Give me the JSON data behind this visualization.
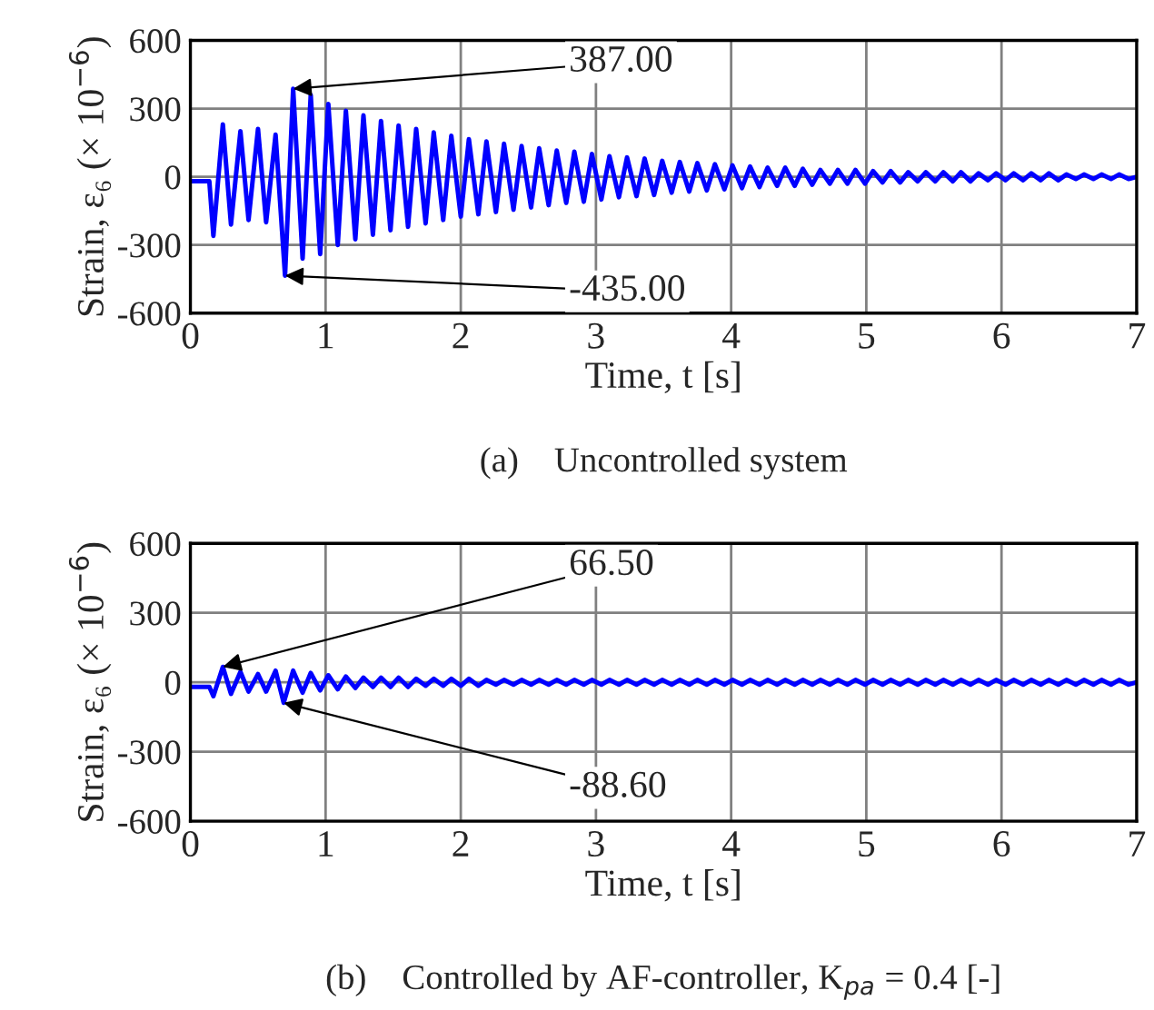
{
  "chart_data": [
    {
      "type": "line",
      "xlabel": "Time, t [s]",
      "ylabel": "Strain, ε₆ (× 10$^{−6}$)",
      "xlim": [
        0,
        7
      ],
      "ylim": [
        -600,
        600
      ],
      "xticks": [
        0,
        1,
        2,
        3,
        4,
        5,
        6,
        7
      ],
      "yticks": [
        -600,
        -300,
        0,
        300,
        600
      ],
      "grid": true,
      "legend": false,
      "x": [
        0,
        0.14,
        0.17,
        0.24,
        0.3,
        0.37,
        0.43,
        0.5,
        0.56,
        0.63,
        0.7,
        0.76,
        0.83,
        0.89,
        0.96,
        1.02,
        1.09,
        1.15,
        1.22,
        1.28,
        1.35,
        1.41,
        1.48,
        1.54,
        1.61,
        1.67,
        1.74,
        1.8,
        1.87,
        1.93,
        2.0,
        2.06,
        2.13,
        2.19,
        2.26,
        2.32,
        2.39,
        2.45,
        2.52,
        2.58,
        2.65,
        2.71,
        2.78,
        2.84,
        2.91,
        2.97,
        3.04,
        3.1,
        3.17,
        3.23,
        3.3,
        3.36,
        3.43,
        3.49,
        3.56,
        3.62,
        3.69,
        3.75,
        3.82,
        3.88,
        3.95,
        4.01,
        4.08,
        4.14,
        4.21,
        4.27,
        4.34,
        4.4,
        4.47,
        4.53,
        4.6,
        4.66,
        4.73,
        4.79,
        4.86,
        4.92,
        4.99,
        5.05,
        5.12,
        5.18,
        5.25,
        5.31,
        5.38,
        5.44,
        5.51,
        5.57,
        5.64,
        5.7,
        5.77,
        5.83,
        5.9,
        5.96,
        6.03,
        6.09,
        6.16,
        6.22,
        6.29,
        6.35,
        6.42,
        6.48,
        6.55,
        6.61,
        6.68,
        6.74,
        6.81,
        6.87,
        6.94,
        7.0
      ],
      "series": [
        {
          "color": "#0000ff",
          "values": [
            -20,
            -20,
            -260,
            230,
            -210,
            200,
            -190,
            210,
            -200,
            185,
            -435,
            387,
            -360,
            360,
            -340,
            320,
            -300,
            290,
            -275,
            270,
            -255,
            245,
            -235,
            225,
            -220,
            210,
            -205,
            195,
            -190,
            180,
            -175,
            165,
            -165,
            155,
            -155,
            145,
            -145,
            135,
            -135,
            125,
            -125,
            115,
            -115,
            110,
            -110,
            100,
            -100,
            90,
            -90,
            85,
            -85,
            80,
            -80,
            70,
            -70,
            65,
            -65,
            60,
            -60,
            55,
            -55,
            50,
            -50,
            45,
            -45,
            40,
            -40,
            40,
            -40,
            35,
            -35,
            30,
            -30,
            30,
            -30,
            30,
            -30,
            25,
            -25,
            25,
            -25,
            20,
            -20,
            20,
            -20,
            20,
            -20,
            20,
            -20,
            15,
            -15,
            15,
            -15,
            15,
            -15,
            15,
            -15,
            15,
            -15,
            10,
            -10,
            10,
            -10,
            10,
            -10,
            10,
            -10,
            0
          ]
        }
      ],
      "annotations": [
        {
          "text": "387.00",
          "x": 0.76,
          "y": 387
        },
        {
          "text": "-435.00",
          "x": 0.7,
          "y": -435
        },
        "(a)    Uncontrolled system"
      ]
    },
    {
      "type": "line",
      "xlabel": "Time, t [s]",
      "ylabel": "Strain, ε₆ (× 10$^{−6}$)",
      "xlim": [
        0,
        7
      ],
      "ylim": [
        -600,
        600
      ],
      "xticks": [
        0,
        1,
        2,
        3,
        4,
        5,
        6,
        7
      ],
      "yticks": [
        -600,
        -300,
        0,
        300,
        600
      ],
      "grid": true,
      "legend": false,
      "x": [
        0,
        0.14,
        0.17,
        0.24,
        0.3,
        0.37,
        0.43,
        0.5,
        0.56,
        0.63,
        0.69,
        0.76,
        0.83,
        0.89,
        0.96,
        1.02,
        1.09,
        1.15,
        1.22,
        1.28,
        1.35,
        1.41,
        1.48,
        1.54,
        1.61,
        1.67,
        1.74,
        1.8,
        1.87,
        1.93,
        2.0,
        2.06,
        2.13,
        2.19,
        2.26,
        2.32,
        2.39,
        2.45,
        2.52,
        2.58,
        2.65,
        2.71,
        2.78,
        2.84,
        2.91,
        2.97,
        3.04,
        3.1,
        3.17,
        3.23,
        3.3,
        3.36,
        3.43,
        3.49,
        3.56,
        3.62,
        3.69,
        3.75,
        3.82,
        3.88,
        3.95,
        4.01,
        4.08,
        4.14,
        4.21,
        4.27,
        4.34,
        4.4,
        4.47,
        4.53,
        4.6,
        4.66,
        4.73,
        4.79,
        4.86,
        4.92,
        4.99,
        5.05,
        5.12,
        5.18,
        5.25,
        5.31,
        5.38,
        5.44,
        5.51,
        5.57,
        5.64,
        5.7,
        5.77,
        5.83,
        5.9,
        5.96,
        6.03,
        6.09,
        6.16,
        6.22,
        6.29,
        6.35,
        6.42,
        6.48,
        6.55,
        6.61,
        6.68,
        6.74,
        6.81,
        6.87,
        6.94,
        7.0
      ],
      "series": [
        {
          "color": "#0000ff",
          "values": [
            -20,
            -20,
            -60,
            66.5,
            -50,
            45,
            -40,
            35,
            -40,
            50,
            -88.6,
            50,
            -45,
            40,
            -35,
            30,
            -30,
            25,
            -25,
            20,
            -20,
            20,
            -20,
            20,
            -20,
            15,
            -15,
            15,
            -15,
            15,
            -15,
            15,
            -15,
            10,
            -10,
            10,
            -10,
            10,
            -10,
            10,
            -10,
            10,
            -10,
            10,
            -10,
            10,
            -10,
            10,
            -10,
            10,
            -10,
            10,
            -10,
            10,
            -10,
            10,
            -10,
            10,
            -10,
            10,
            -10,
            10,
            -10,
            10,
            -10,
            10,
            -10,
            10,
            -10,
            10,
            -10,
            10,
            -10,
            10,
            -10,
            10,
            -10,
            10,
            -10,
            10,
            -10,
            10,
            -10,
            10,
            -10,
            10,
            -10,
            10,
            -10,
            10,
            -10,
            10,
            -10,
            10,
            -10,
            10,
            -10,
            10,
            -10,
            10,
            -10,
            10,
            -10,
            10,
            -10,
            10,
            -10,
            0
          ]
        }
      ],
      "annotations": [
        {
          "text": "66.50",
          "x": 0.24,
          "y": 66.5
        },
        {
          "text": "-88.60",
          "x": 0.69,
          "y": -88.6
        },
        "(b)    Controlled by AF-controller, K$_{pa}$ = 0.4 [-]"
      ]
    }
  ]
}
